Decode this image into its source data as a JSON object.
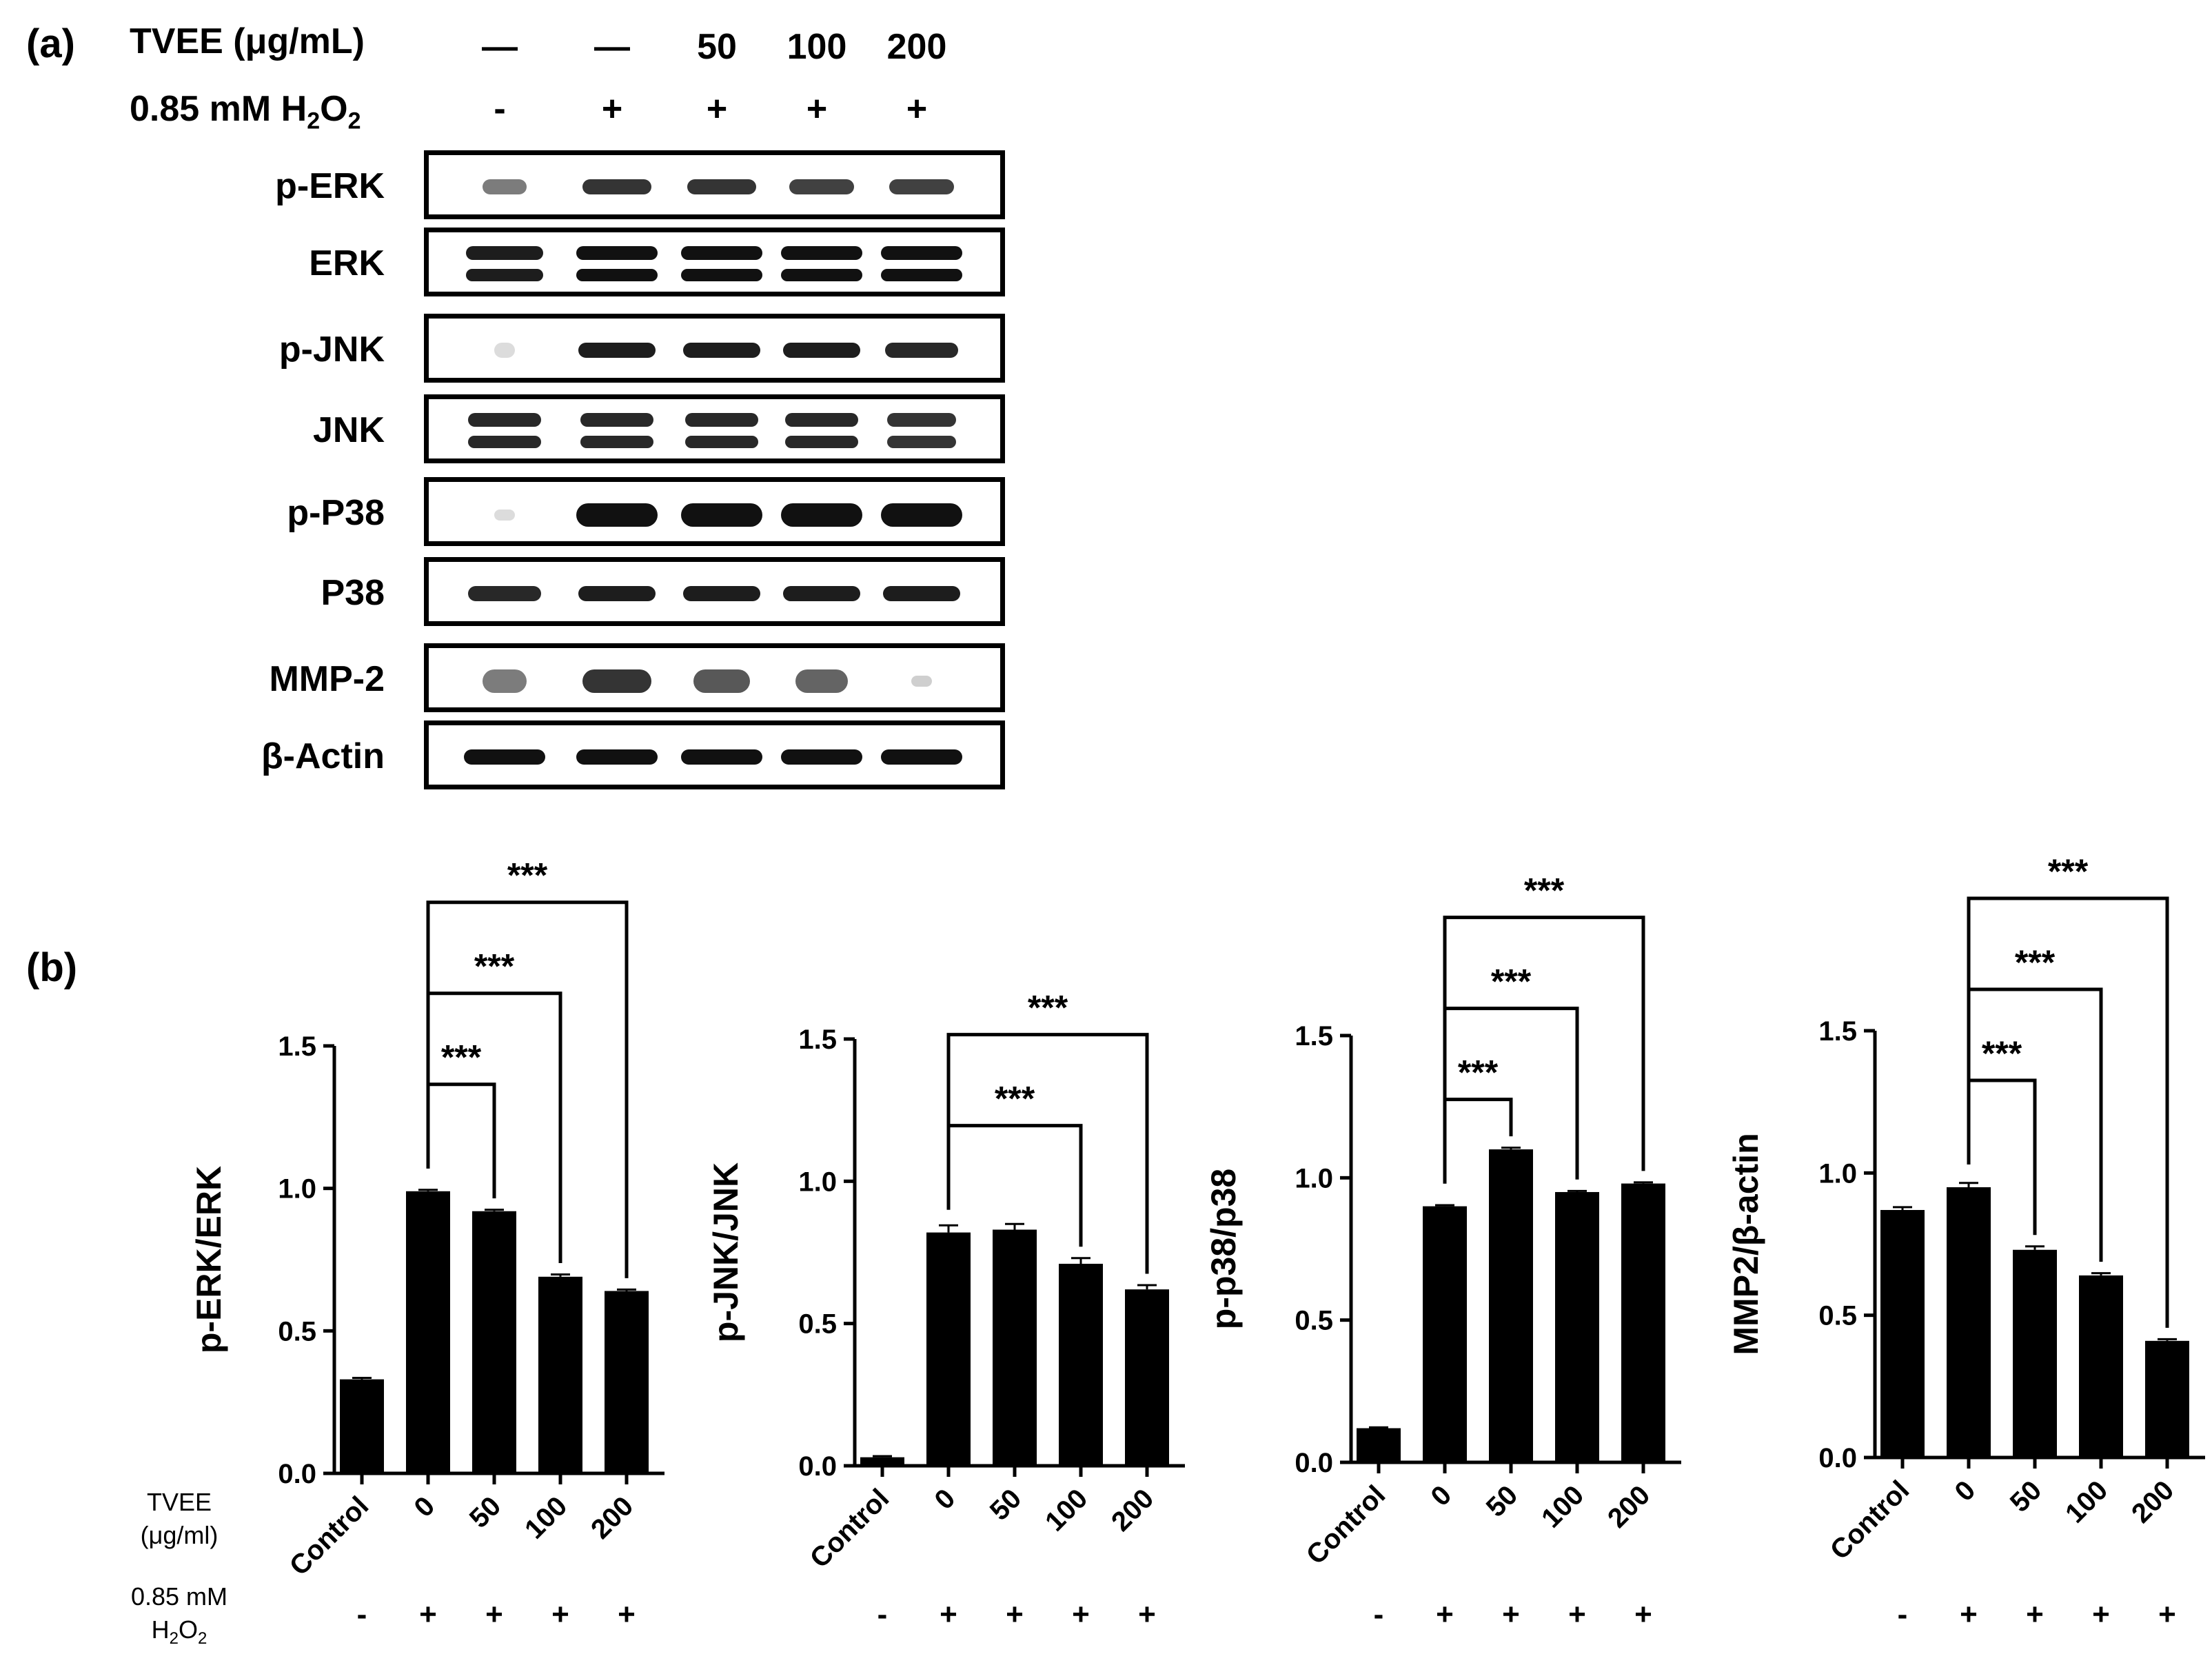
{
  "panel_a": {
    "label": "(a)",
    "tvee_label": "TVEE (μg/mL)",
    "tvee_values": [
      "—",
      "—",
      "50",
      "100",
      "200"
    ],
    "h2o2_label_main": "0.85 mM H",
    "h2o2_sub1": "2",
    "h2o2_mid": "O",
    "h2o2_sub2": "2",
    "h2o2_values": [
      "-",
      "+",
      "+",
      "+",
      "+"
    ],
    "blots": [
      {
        "label": "p-ERK",
        "intensity": [
          0.55,
          0.85,
          0.85,
          0.8,
          0.8
        ]
      },
      {
        "label": "ERK",
        "intensity": [
          0.95,
          1.0,
          1.0,
          1.0,
          1.0
        ]
      },
      {
        "label": "p-JNK",
        "intensity": [
          0.05,
          0.95,
          0.95,
          0.95,
          0.9
        ]
      },
      {
        "label": "JNK",
        "intensity": [
          0.9,
          0.9,
          0.9,
          0.9,
          0.85
        ]
      },
      {
        "label": "p-P38",
        "intensity": [
          0.15,
          1.0,
          1.0,
          1.0,
          1.0
        ]
      },
      {
        "label": "P38",
        "intensity": [
          0.9,
          0.95,
          0.95,
          0.95,
          0.95
        ]
      },
      {
        "label": "MMP-2",
        "intensity": [
          0.55,
          0.85,
          0.7,
          0.65,
          0.2
        ]
      },
      {
        "label": "β-Actin",
        "intensity": [
          1.0,
          1.0,
          1.0,
          1.0,
          1.0
        ]
      }
    ]
  },
  "panel_b": {
    "label": "(b)",
    "row_label_tvee_1": "TVEE",
    "row_label_tvee_2": "(μg/ml)",
    "row_label_h2o2_1": "0.85 mM",
    "row_label_h2o2_2": "H",
    "row_label_h2o2_sub": "2",
    "row_label_h2o2_mid": "O",
    "row_label_h2o2_sub2": "2"
  },
  "chart_data": [
    {
      "type": "bar",
      "ylabel": "p-ERK/ERK",
      "categories": [
        "Control",
        "0",
        "50",
        "100",
        "200"
      ],
      "values": [
        0.33,
        0.99,
        0.92,
        0.69,
        0.64
      ],
      "errors": [
        0.005,
        0.005,
        0.005,
        0.008,
        0.005
      ],
      "ylim": [
        0,
        1.5
      ],
      "yticks": [
        "0.0",
        "0.5",
        "1.0",
        "1.5"
      ],
      "h2o2": [
        "-",
        "+",
        "+",
        "+",
        "+"
      ],
      "significance": [
        {
          "from": 1,
          "to": 2,
          "label": "***"
        },
        {
          "from": 1,
          "to": 3,
          "label": "***"
        },
        {
          "from": 1,
          "to": 4,
          "label": "***"
        }
      ]
    },
    {
      "type": "bar",
      "ylabel": "p-JNK/JNK",
      "categories": [
        "Control",
        "0",
        "50",
        "100",
        "200"
      ],
      "values": [
        0.03,
        0.82,
        0.83,
        0.71,
        0.62
      ],
      "errors": [
        0.004,
        0.025,
        0.02,
        0.02,
        0.015
      ],
      "ylim": [
        0,
        1.5
      ],
      "yticks": [
        "0.0",
        "0.5",
        "1.0",
        "1.5"
      ],
      "h2o2": [
        "-",
        "+",
        "+",
        "+",
        "+"
      ],
      "significance": [
        {
          "from": 1,
          "to": 3,
          "label": "***"
        },
        {
          "from": 1,
          "to": 4,
          "label": "***"
        }
      ]
    },
    {
      "type": "bar",
      "ylabel": "p-p38/p38",
      "categories": [
        "Control",
        "0",
        "50",
        "100",
        "200"
      ],
      "values": [
        0.12,
        0.9,
        1.1,
        0.95,
        0.98
      ],
      "errors": [
        0.003,
        0.004,
        0.006,
        0.004,
        0.004
      ],
      "ylim": [
        0,
        1.5
      ],
      "yticks": [
        "0.0",
        "0.5",
        "1.0",
        "1.5"
      ],
      "h2o2": [
        "-",
        "+",
        "+",
        "+",
        "+"
      ],
      "significance": [
        {
          "from": 1,
          "to": 2,
          "label": "***"
        },
        {
          "from": 1,
          "to": 3,
          "label": "***"
        },
        {
          "from": 1,
          "to": 4,
          "label": "***"
        }
      ]
    },
    {
      "type": "bar",
      "ylabel": "MMP2/β-actin",
      "categories": [
        "Control",
        "0",
        "50",
        "100",
        "200"
      ],
      "values": [
        0.87,
        0.95,
        0.73,
        0.64,
        0.41
      ],
      "errors": [
        0.01,
        0.015,
        0.012,
        0.008,
        0.006
      ],
      "ylim": [
        0,
        1.5
      ],
      "yticks": [
        "0.0",
        "0.5",
        "1.0",
        "1.5"
      ],
      "h2o2": [
        "-",
        "+",
        "+",
        "+",
        "+"
      ],
      "significance": [
        {
          "from": 1,
          "to": 2,
          "label": "***"
        },
        {
          "from": 1,
          "to": 3,
          "label": "***"
        },
        {
          "from": 1,
          "to": 4,
          "label": "***"
        }
      ]
    }
  ]
}
